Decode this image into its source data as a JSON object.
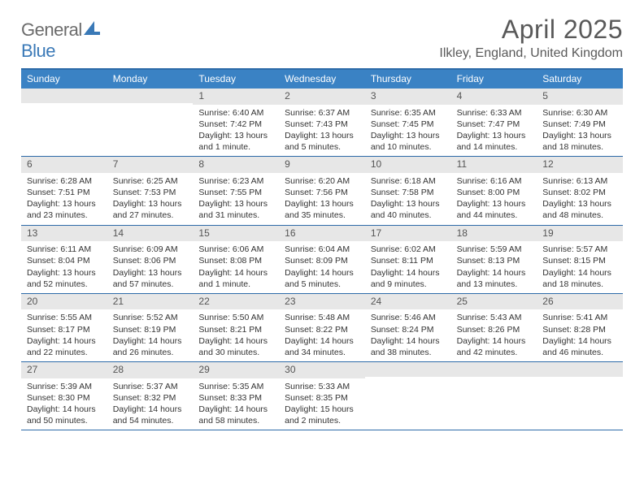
{
  "brand": {
    "name_a": "General",
    "name_b": "Blue"
  },
  "title": {
    "month": "April 2025",
    "location": "Ilkley, England, United Kingdom"
  },
  "colors": {
    "header_bar": "#3a82c4",
    "rule": "#2d6aa8",
    "daynum_bg": "#e7e7e7",
    "text_main": "#333333",
    "text_mute": "#595959",
    "brand_grey": "#6b6b6b",
    "brand_blue": "#3a79b7",
    "background": "#ffffff"
  },
  "labels": {
    "sunrise": "Sunrise:",
    "sunset": "Sunset:",
    "daylight": "Daylight:"
  },
  "day_headers": [
    "Sunday",
    "Monday",
    "Tuesday",
    "Wednesday",
    "Thursday",
    "Friday",
    "Saturday"
  ],
  "weeks": [
    [
      null,
      null,
      {
        "n": "1",
        "sr": "6:40 AM",
        "ss": "7:42 PM",
        "dl": "13 hours and 1 minute."
      },
      {
        "n": "2",
        "sr": "6:37 AM",
        "ss": "7:43 PM",
        "dl": "13 hours and 5 minutes."
      },
      {
        "n": "3",
        "sr": "6:35 AM",
        "ss": "7:45 PM",
        "dl": "13 hours and 10 minutes."
      },
      {
        "n": "4",
        "sr": "6:33 AM",
        "ss": "7:47 PM",
        "dl": "13 hours and 14 minutes."
      },
      {
        "n": "5",
        "sr": "6:30 AM",
        "ss": "7:49 PM",
        "dl": "13 hours and 18 minutes."
      }
    ],
    [
      {
        "n": "6",
        "sr": "6:28 AM",
        "ss": "7:51 PM",
        "dl": "13 hours and 23 minutes."
      },
      {
        "n": "7",
        "sr": "6:25 AM",
        "ss": "7:53 PM",
        "dl": "13 hours and 27 minutes."
      },
      {
        "n": "8",
        "sr": "6:23 AM",
        "ss": "7:55 PM",
        "dl": "13 hours and 31 minutes."
      },
      {
        "n": "9",
        "sr": "6:20 AM",
        "ss": "7:56 PM",
        "dl": "13 hours and 35 minutes."
      },
      {
        "n": "10",
        "sr": "6:18 AM",
        "ss": "7:58 PM",
        "dl": "13 hours and 40 minutes."
      },
      {
        "n": "11",
        "sr": "6:16 AM",
        "ss": "8:00 PM",
        "dl": "13 hours and 44 minutes."
      },
      {
        "n": "12",
        "sr": "6:13 AM",
        "ss": "8:02 PM",
        "dl": "13 hours and 48 minutes."
      }
    ],
    [
      {
        "n": "13",
        "sr": "6:11 AM",
        "ss": "8:04 PM",
        "dl": "13 hours and 52 minutes."
      },
      {
        "n": "14",
        "sr": "6:09 AM",
        "ss": "8:06 PM",
        "dl": "13 hours and 57 minutes."
      },
      {
        "n": "15",
        "sr": "6:06 AM",
        "ss": "8:08 PM",
        "dl": "14 hours and 1 minute."
      },
      {
        "n": "16",
        "sr": "6:04 AM",
        "ss": "8:09 PM",
        "dl": "14 hours and 5 minutes."
      },
      {
        "n": "17",
        "sr": "6:02 AM",
        "ss": "8:11 PM",
        "dl": "14 hours and 9 minutes."
      },
      {
        "n": "18",
        "sr": "5:59 AM",
        "ss": "8:13 PM",
        "dl": "14 hours and 13 minutes."
      },
      {
        "n": "19",
        "sr": "5:57 AM",
        "ss": "8:15 PM",
        "dl": "14 hours and 18 minutes."
      }
    ],
    [
      {
        "n": "20",
        "sr": "5:55 AM",
        "ss": "8:17 PM",
        "dl": "14 hours and 22 minutes."
      },
      {
        "n": "21",
        "sr": "5:52 AM",
        "ss": "8:19 PM",
        "dl": "14 hours and 26 minutes."
      },
      {
        "n": "22",
        "sr": "5:50 AM",
        "ss": "8:21 PM",
        "dl": "14 hours and 30 minutes."
      },
      {
        "n": "23",
        "sr": "5:48 AM",
        "ss": "8:22 PM",
        "dl": "14 hours and 34 minutes."
      },
      {
        "n": "24",
        "sr": "5:46 AM",
        "ss": "8:24 PM",
        "dl": "14 hours and 38 minutes."
      },
      {
        "n": "25",
        "sr": "5:43 AM",
        "ss": "8:26 PM",
        "dl": "14 hours and 42 minutes."
      },
      {
        "n": "26",
        "sr": "5:41 AM",
        "ss": "8:28 PM",
        "dl": "14 hours and 46 minutes."
      }
    ],
    [
      {
        "n": "27",
        "sr": "5:39 AM",
        "ss": "8:30 PM",
        "dl": "14 hours and 50 minutes."
      },
      {
        "n": "28",
        "sr": "5:37 AM",
        "ss": "8:32 PM",
        "dl": "14 hours and 54 minutes."
      },
      {
        "n": "29",
        "sr": "5:35 AM",
        "ss": "8:33 PM",
        "dl": "14 hours and 58 minutes."
      },
      {
        "n": "30",
        "sr": "5:33 AM",
        "ss": "8:35 PM",
        "dl": "15 hours and 2 minutes."
      },
      null,
      null,
      null
    ]
  ]
}
